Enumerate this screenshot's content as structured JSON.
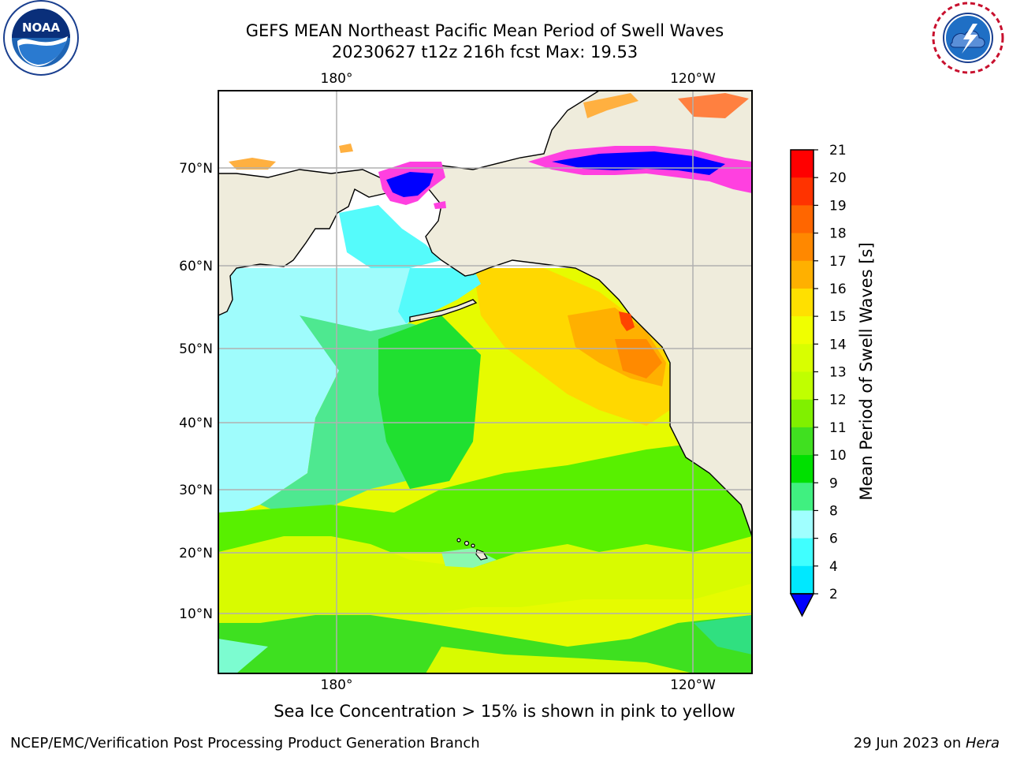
{
  "title": {
    "line1": "GEFS MEAN Northeast Pacific Mean Period of Swell Waves",
    "line2": "20230627 t12z 216h fcst   Max: 19.53"
  },
  "map": {
    "region": "Northeast Pacific",
    "lon_labels_top": [
      "180°",
      "120°W"
    ],
    "lon_labels_bottom": [
      "180°",
      "120°W"
    ],
    "lat_labels": [
      "70°N",
      "60°N",
      "50°N",
      "40°N",
      "30°N",
      "20°N",
      "10°N"
    ],
    "land_color": "#efecdc",
    "grid_color": "#b0b0b0",
    "max_value": 19.53,
    "features": [
      "ocean-swell-period-field",
      "sea-ice-field",
      "land",
      "coastline",
      "hawaii-islands"
    ]
  },
  "colorbar": {
    "title": "Mean Period of Swell Waves [s]",
    "ticks": [
      "21",
      "20",
      "19",
      "18",
      "17",
      "16",
      "15",
      "14",
      "13",
      "12",
      "11",
      "10",
      "9",
      "8",
      "6",
      "4",
      "2"
    ],
    "colors": [
      "#ff0000",
      "#ff3300",
      "#ff6600",
      "#ff8800",
      "#ffb000",
      "#ffe000",
      "#f0ff00",
      "#d8ff00",
      "#c0ff00",
      "#80f000",
      "#40e020",
      "#00e000",
      "#40f080",
      "#a0ffff",
      "#40ffff",
      "#00e8ff",
      "#00c0ff",
      "#0070ff",
      "#0000ff"
    ],
    "extend": "min"
  },
  "logos": {
    "noaa_text": "NOAA",
    "noaa_ring_text": "NATIONAL OCEANIC AND ATMOSPHERIC ADMINISTRATION",
    "noaa_ring_bottom": "U.S. DEPARTMENT OF COMMERCE",
    "nws_ring_text": "NATIONAL WEATHER SERVICE"
  },
  "note": "Sea Ice Concentration > 15% is shown in pink to yellow",
  "footer": {
    "left": "NCEP/EMC/Verification Post Processing Product Generation Branch",
    "right_prefix": "29 Jun 2023 on ",
    "right_host": "Hera"
  }
}
